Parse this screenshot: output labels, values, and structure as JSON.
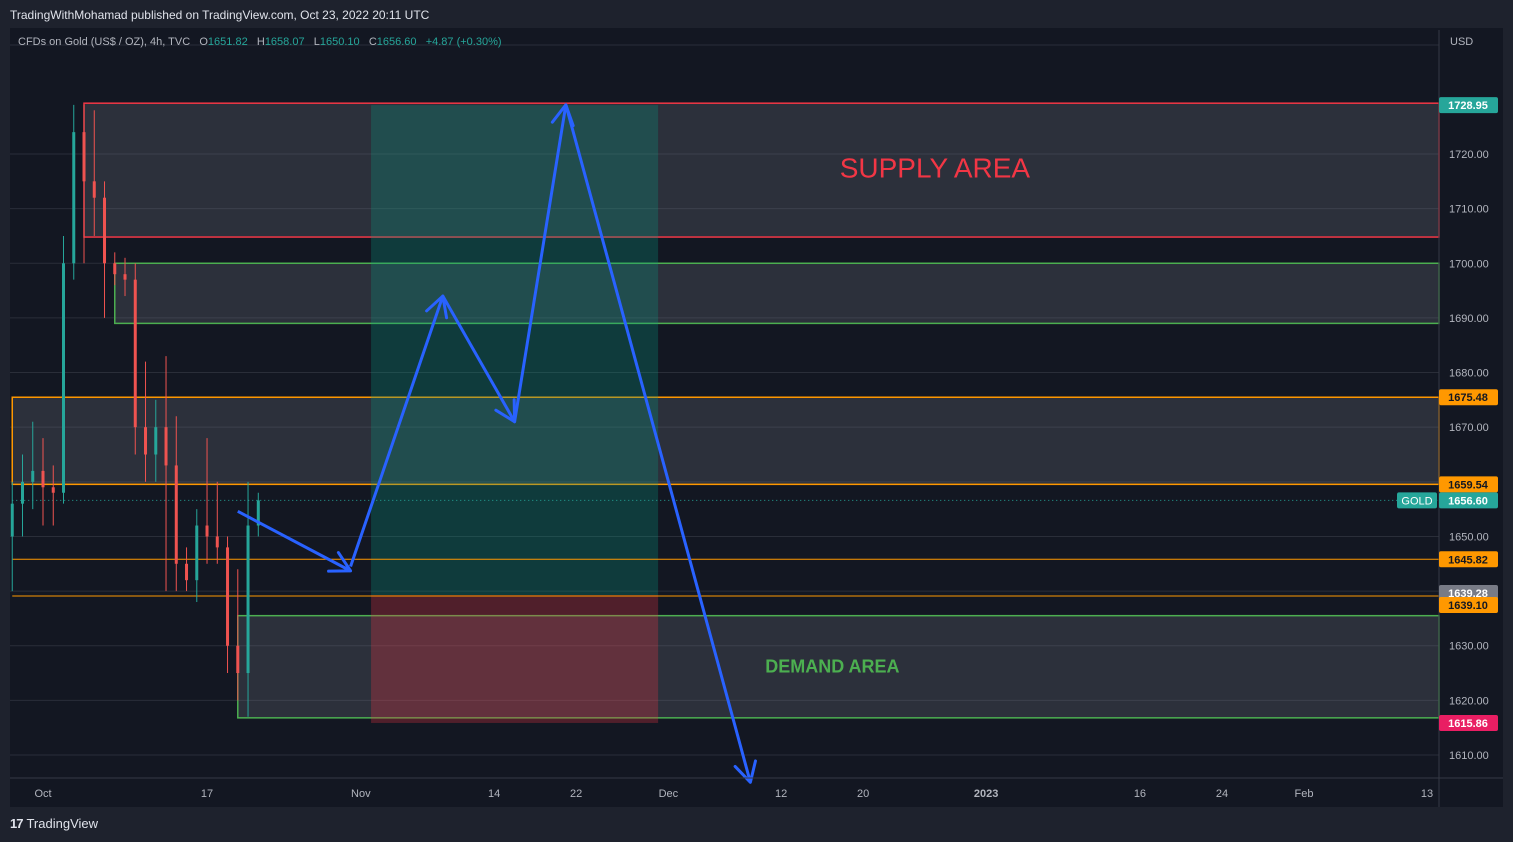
{
  "header": {
    "published": "TradingWithMohamad published on TradingView.com, Oct 23, 2022 20:11 UTC"
  },
  "legend": {
    "symbol": "CFDs on Gold (US$ / OZ), 4h, TVC",
    "o_label": "O",
    "o_value": "1651.82",
    "h_label": "H",
    "h_value": "1658.07",
    "l_label": "L",
    "l_value": "1650.10",
    "c_label": "C",
    "c_value": "1656.60",
    "change": "+4.87 (+0.30%)"
  },
  "footer": {
    "logo_mark": "17",
    "logo_text": "TradingView"
  },
  "chart_data": {
    "type": "candlestick",
    "y_unit": "USD",
    "ylim": [
      1604.5,
      1734.5
    ],
    "y_ticks": [
      1610,
      1620,
      1630,
      1640,
      1650,
      1660,
      1670,
      1680,
      1690,
      1700,
      1710,
      1720
    ],
    "y_tick_labels": [
      "1610.00",
      "1620.00",
      "1630.00",
      "1640.00",
      "1650.00",
      "1660.00",
      "1670.00",
      "1680.00",
      "1690.00",
      "1700.00",
      "1710.00",
      "1720.00"
    ],
    "x_ticks": [
      {
        "label": "Oct",
        "date": "2022-10-01"
      },
      {
        "label": "17",
        "date": "2022-10-17"
      },
      {
        "label": "Nov",
        "date": "2022-11-01"
      },
      {
        "label": "14",
        "date": "2022-11-14"
      },
      {
        "label": "22",
        "date": "2022-11-22"
      },
      {
        "label": "Dec",
        "date": "2022-12-01"
      },
      {
        "label": "12",
        "date": "2022-12-12"
      },
      {
        "label": "20",
        "date": "2022-12-20"
      },
      {
        "label": "2023",
        "date": "2023-01-01"
      },
      {
        "label": "16",
        "date": "2023-01-16"
      },
      {
        "label": "24",
        "date": "2023-01-24"
      },
      {
        "label": "Feb",
        "date": "2023-02-01"
      },
      {
        "label": "13",
        "date": "2023-02-13"
      }
    ],
    "price_tags": [
      {
        "value": 1728.95,
        "label": "1728.95",
        "color": "#26a69a",
        "text_color": "#ffffff"
      },
      {
        "value": 1675.48,
        "label": "1675.48",
        "color": "#ff9800",
        "text_color": "#131722"
      },
      {
        "value": 1659.54,
        "label": "1659.54",
        "color": "#ff9800",
        "text_color": "#131722"
      },
      {
        "value": 1656.6,
        "label": "1656.60",
        "color": "#26a69a",
        "text_color": "#ffffff",
        "symbol": "GOLD"
      },
      {
        "value": 1645.82,
        "label": "1645.82",
        "color": "#ff9800",
        "text_color": "#131722"
      },
      {
        "value": 1639.28,
        "label": "1639.28",
        "color": "#787b86",
        "text_color": "#ffffff"
      },
      {
        "value": 1639.1,
        "label": "1639.10",
        "color": "#ff9800",
        "text_color": "#131722"
      },
      {
        "value": 1615.86,
        "label": "1615.86",
        "color": "#e91e63",
        "text_color": "#ffffff"
      }
    ],
    "zones": [
      {
        "name": "SUPPLY AREA",
        "label": "SUPPLY AREA",
        "start": "2022-10-05",
        "top": 1729.3,
        "bottom": 1704.8,
        "border": "#f23645",
        "label_color": "#f23645",
        "label_date": "2022-12-27",
        "label_value": 1717.5
      },
      {
        "name": "supply-zone-2",
        "label": "",
        "start": "2022-10-08",
        "top": 1700.0,
        "bottom": 1689.0,
        "border": "#4caf50"
      },
      {
        "name": "mid-zone",
        "label": "",
        "start": "2022-09-28",
        "top": 1675.48,
        "bottom": 1659.54,
        "border": "#ff9800"
      },
      {
        "name": "DEMAND AREA",
        "label": "DEMAND AREA",
        "start": "2022-10-20",
        "top": 1635.5,
        "bottom": 1616.8,
        "border": "#4caf50",
        "label_color": "#4caf50",
        "label_date": "2022-12-17",
        "label_value": 1626.2
      }
    ],
    "levels": [
      {
        "value": 1645.82,
        "color": "#ff9800",
        "start": "2022-09-28"
      },
      {
        "value": 1639.1,
        "color": "#ff9800",
        "start": "2022-09-28"
      },
      {
        "value": 1656.6,
        "color": "#26a69a",
        "start": "2022-09-28",
        "dashed": true
      }
    ],
    "position": {
      "start": "2022-11-02",
      "end": "2022-11-30",
      "entry": 1639.28,
      "target": 1728.95,
      "stop": 1615.86
    },
    "arrows": [
      [
        [
          "2022-10-20",
          1654.6
        ],
        [
          "2022-10-31",
          1643.7
        ]
      ],
      [
        [
          "2022-10-31",
          1644.5
        ],
        [
          "2022-11-09",
          1694.0
        ],
        [
          "2022-11-16",
          1671.0
        ],
        [
          "2022-11-21",
          1729.0
        ],
        [
          "2022-12-09",
          1605.0
        ]
      ]
    ],
    "series": [
      {
        "name": "XAUUSD 4h",
        "values": [
          [
            "2022-09-28",
            1650,
            1660,
            1640,
            1656
          ],
          [
            "2022-09-29",
            1656,
            1665,
            1650,
            1660
          ],
          [
            "2022-09-30",
            1660,
            1671,
            1655,
            1662
          ],
          [
            "2022-10-01",
            1662,
            1668,
            1652,
            1659
          ],
          [
            "2022-10-02",
            1659,
            1663,
            1652,
            1658
          ],
          [
            "2022-10-03",
            1658,
            1705,
            1656,
            1700
          ],
          [
            "2022-10-04",
            1700,
            1729,
            1697,
            1724
          ],
          [
            "2022-10-05",
            1724,
            1729,
            1700,
            1715
          ],
          [
            "2022-10-06",
            1715,
            1728,
            1705,
            1712
          ],
          [
            "2022-10-07",
            1712,
            1715,
            1690,
            1700
          ],
          [
            "2022-10-08",
            1700,
            1702,
            1696,
            1698
          ],
          [
            "2022-10-09",
            1698,
            1701,
            1694,
            1697
          ],
          [
            "2022-10-10",
            1697,
            1700,
            1665,
            1670
          ],
          [
            "2022-10-11",
            1670,
            1682,
            1660,
            1665
          ],
          [
            "2022-10-12",
            1665,
            1675,
            1660,
            1670
          ],
          [
            "2022-10-13",
            1670,
            1683,
            1640,
            1663
          ],
          [
            "2022-10-14",
            1663,
            1672,
            1640,
            1645
          ],
          [
            "2022-10-15",
            1645,
            1648,
            1640,
            1642
          ],
          [
            "2022-10-16",
            1642,
            1655,
            1638,
            1652
          ],
          [
            "2022-10-17",
            1652,
            1668,
            1645,
            1650
          ],
          [
            "2022-10-18",
            1650,
            1660,
            1645,
            1648
          ],
          [
            "2022-10-19",
            1648,
            1650,
            1625,
            1630
          ],
          [
            "2022-10-20",
            1630,
            1644,
            1620,
            1625
          ],
          [
            "2022-10-21",
            1625,
            1660,
            1617,
            1652
          ],
          [
            "2022-10-22",
            1652,
            1658,
            1650,
            1656.6
          ]
        ]
      }
    ]
  }
}
